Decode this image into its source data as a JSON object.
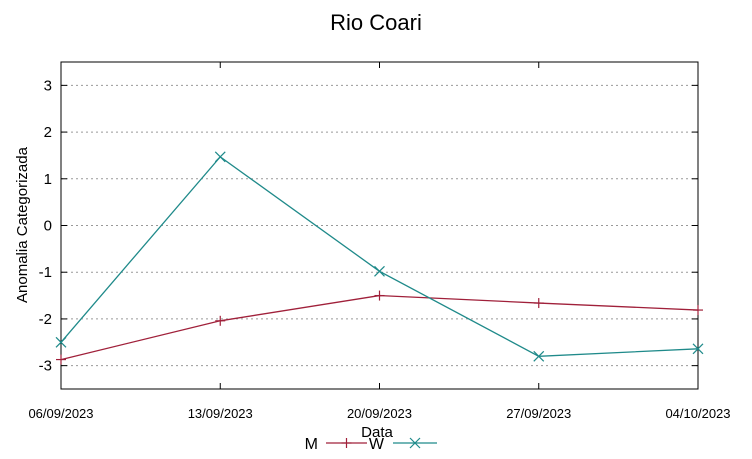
{
  "chart_data": {
    "type": "line",
    "title": "Rio Coari",
    "xlabel": "Data",
    "ylabel": "Anomalia Categorizada",
    "categories": [
      "06/09/2023",
      "13/09/2023",
      "20/09/2023",
      "27/09/2023",
      "04/10/2023"
    ],
    "yticks": [
      3,
      2,
      1,
      0,
      -1,
      -2,
      -3
    ],
    "ylim": [
      -3.5,
      3.5
    ],
    "grid": true,
    "legend_position": "bottom",
    "series": [
      {
        "name": "M",
        "color": "#a0203a",
        "marker": "plus",
        "values": [
          -2.87,
          -2.04,
          -1.5,
          -1.66,
          -1.81
        ]
      },
      {
        "name": "W",
        "color": "#1f8a8a",
        "marker": "cross",
        "values": [
          -2.5,
          1.47,
          -0.98,
          -2.8,
          -2.64
        ]
      }
    ]
  }
}
